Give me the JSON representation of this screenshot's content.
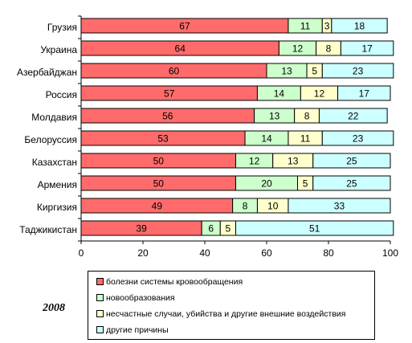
{
  "chart_data": {
    "type": "bar",
    "orientation": "horizontal",
    "stacked": true,
    "categories": [
      "Грузия",
      "Украина",
      "Азербайджан",
      "Россия",
      "Молдавия",
      "Белоруссия",
      "Казахстан",
      "Армения",
      "Киргизия",
      "Таджикистан"
    ],
    "series": [
      {
        "name": "болезни системы кровообращения",
        "color": "#ff6b6b",
        "values": [
          67,
          64,
          60,
          57,
          56,
          53,
          50,
          50,
          49,
          39
        ]
      },
      {
        "name": "новообразования",
        "color": "#ccffcc",
        "values": [
          11,
          12,
          13,
          14,
          13,
          14,
          12,
          20,
          8,
          6
        ]
      },
      {
        "name": "несчастные случаи, убийства и другие внешние воздействия",
        "color": "#ffffcc",
        "values": [
          3,
          8,
          5,
          12,
          8,
          11,
          13,
          5,
          10,
          5
        ]
      },
      {
        "name": "другие причины",
        "color": "#ccffff",
        "values": [
          18,
          17,
          23,
          17,
          22,
          23,
          25,
          25,
          33,
          51
        ]
      }
    ],
    "xlim": [
      0,
      100
    ],
    "xticks": [
      "0",
      "20",
      "40",
      "60",
      "80",
      "100"
    ],
    "title": "",
    "xlabel": "",
    "ylabel": "",
    "grid": false,
    "legend_position": "bottom",
    "annotation": "2008"
  }
}
